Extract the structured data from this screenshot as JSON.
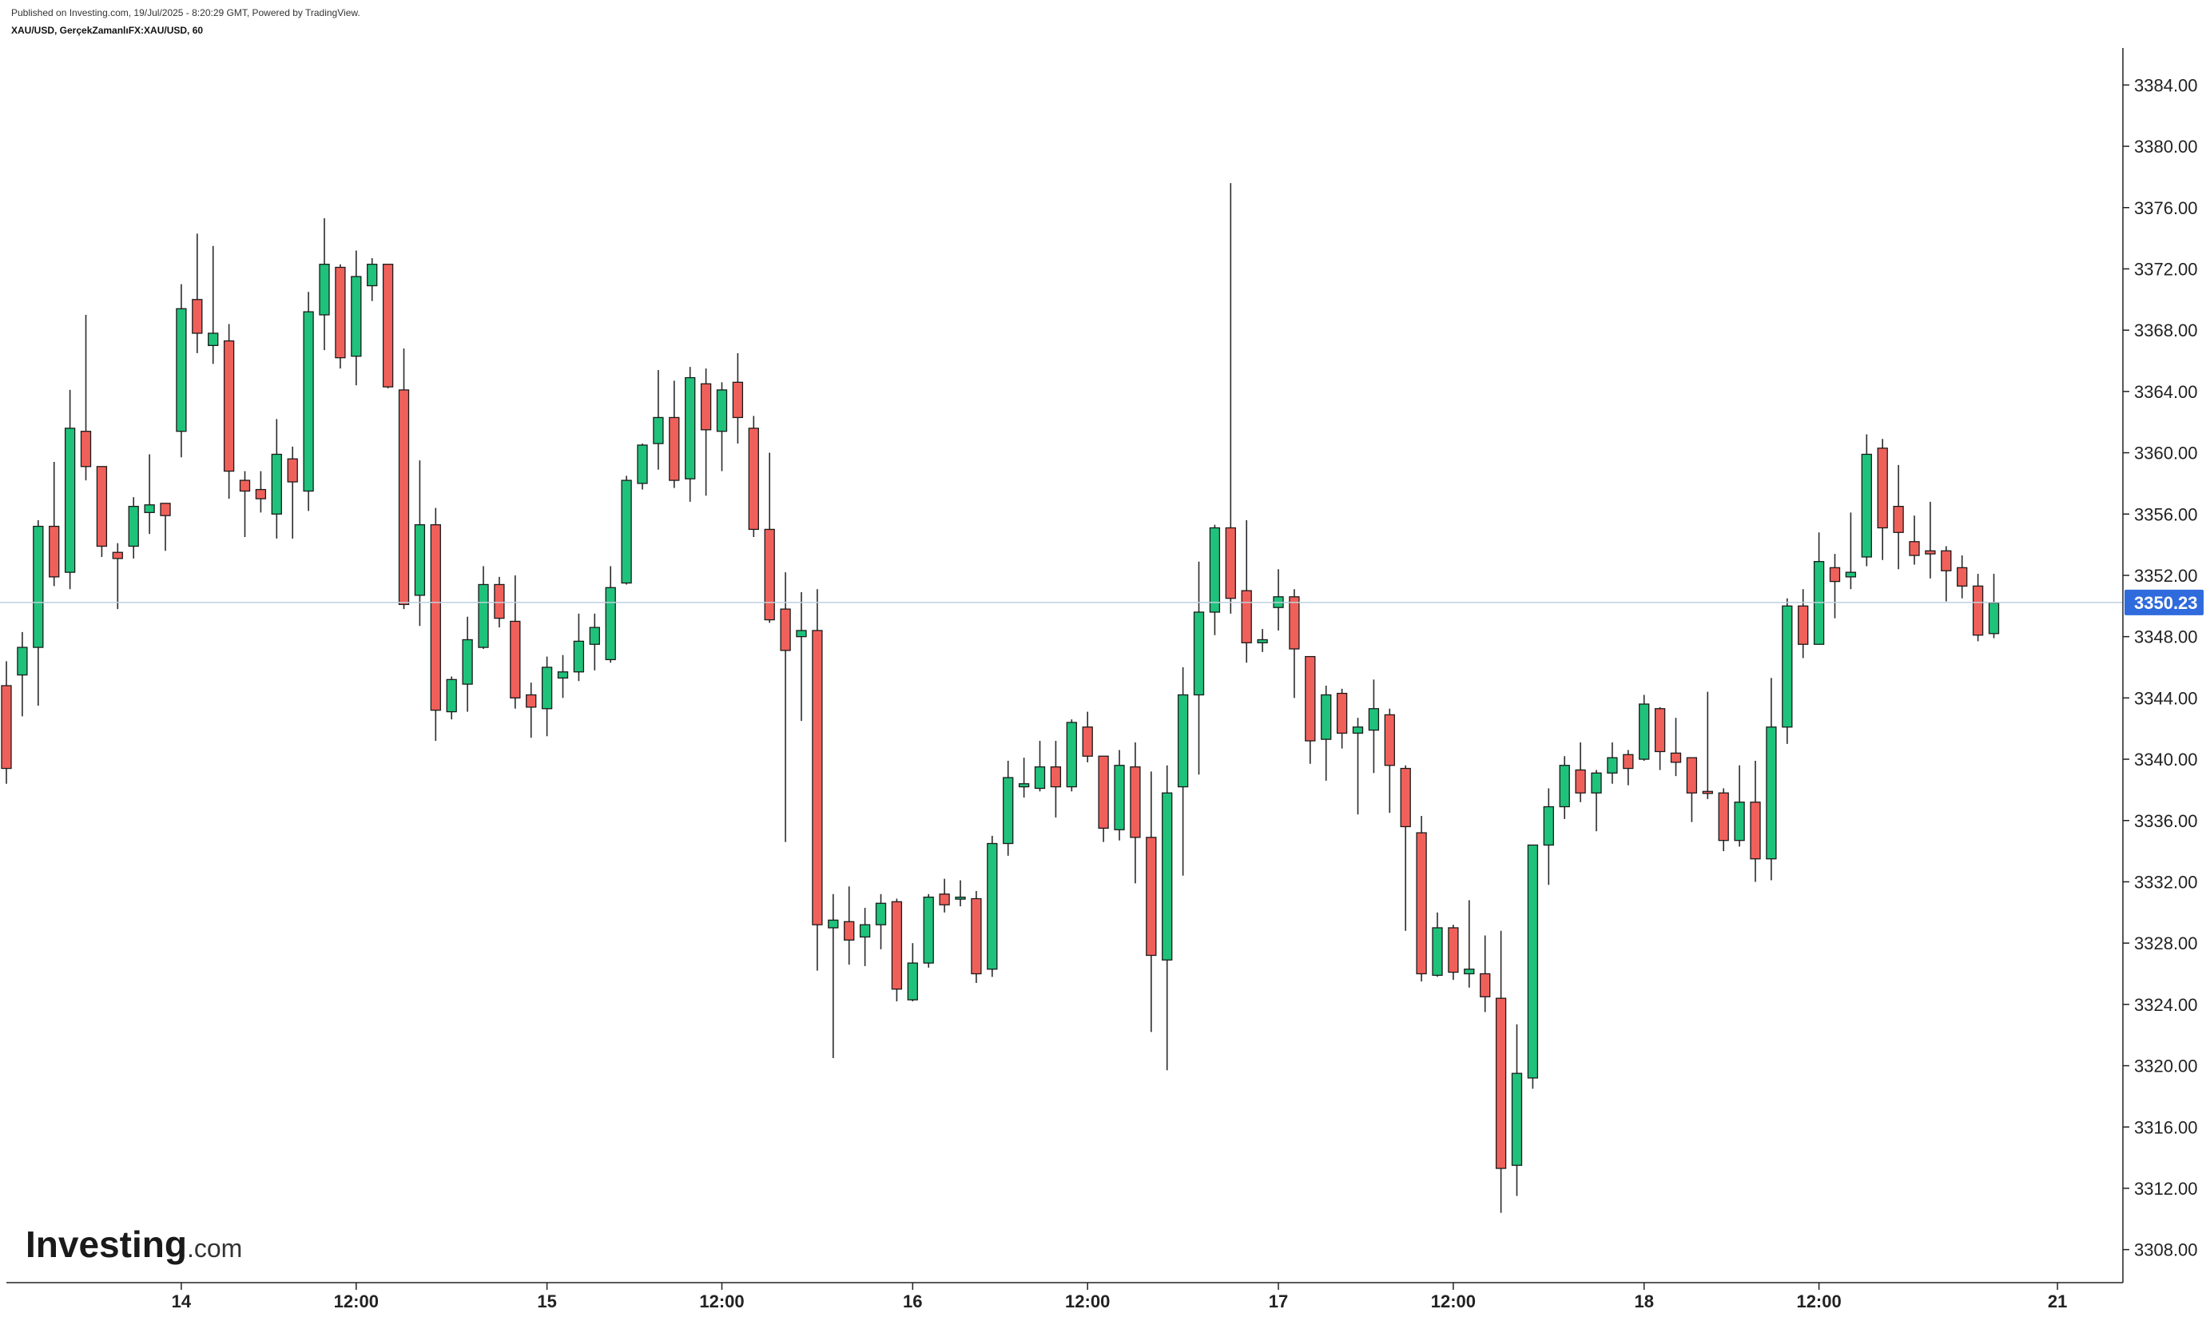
{
  "header": {
    "published": "Published on Investing.com, 19/Jul/2025 - 8:20:29 GMT, Powered by TradingView.",
    "symbol": "XAU/USD, GerçekZamanlıFX:XAU/USD, 60"
  },
  "logo": {
    "brand": "Investing",
    "suffix": ".com"
  },
  "colors": {
    "up": "#1fc27a",
    "down": "#f0605a",
    "wick": "#2a2a2a",
    "price_line": "#bcd0de",
    "price_badge": "#2f6bdc"
  },
  "chart_data": {
    "type": "candlestick",
    "title": "XAU/USD, GerçekZamanlıFX:XAU/USD, 60",
    "interval": "60",
    "ylim": [
      3306,
      3386
    ],
    "y_ticks": [
      "3308.00",
      "3312.00",
      "3316.00",
      "3320.00",
      "3324.00",
      "3328.00",
      "3332.00",
      "3336.00",
      "3340.00",
      "3344.00",
      "3348.00",
      "3352.00",
      "3356.00",
      "3360.00",
      "3364.00",
      "3368.00",
      "3372.00",
      "3376.00",
      "3380.00",
      "3384.00"
    ],
    "x_ticks": [
      {
        "label": "14",
        "bar": 11
      },
      {
        "label": "12:00",
        "bar": 22
      },
      {
        "label": "15",
        "bar": 34
      },
      {
        "label": "12:00",
        "bar": 45
      },
      {
        "label": "16",
        "bar": 57
      },
      {
        "label": "12:00",
        "bar": 68
      },
      {
        "label": "17",
        "bar": 80
      },
      {
        "label": "12:00",
        "bar": 91
      },
      {
        "label": "18",
        "bar": 103
      },
      {
        "label": "12:00",
        "bar": 114
      },
      {
        "label": "21",
        "bar": 129
      }
    ],
    "last_price": "3350.23",
    "last_value": 3350.23,
    "candles": [
      [
        3344.8,
        3346.4,
        3338.4,
        3339.4
      ],
      [
        3345.5,
        3348.3,
        3342.8,
        3347.3
      ],
      [
        3347.3,
        3355.6,
        3343.5,
        3355.2
      ],
      [
        3355.2,
        3359.4,
        3351.3,
        3351.9
      ],
      [
        3352.2,
        3364.1,
        3351.1,
        3361.6
      ],
      [
        3361.4,
        3369.0,
        3358.2,
        3359.1
      ],
      [
        3359.1,
        3359.1,
        3353.2,
        3353.9
      ],
      [
        3353.5,
        3354.1,
        3349.8,
        3353.1
      ],
      [
        3353.9,
        3357.1,
        3353.1,
        3356.5
      ],
      [
        3356.1,
        3359.9,
        3354.7,
        3356.6
      ],
      [
        3356.7,
        3356.7,
        3353.6,
        3355.9
      ],
      [
        3361.4,
        3371.0,
        3359.7,
        3369.4
      ],
      [
        3370.0,
        3374.3,
        3366.5,
        3367.8
      ],
      [
        3367.0,
        3373.5,
        3365.8,
        3367.8
      ],
      [
        3367.3,
        3368.4,
        3357.0,
        3358.8
      ],
      [
        3358.2,
        3358.8,
        3354.5,
        3357.5
      ],
      [
        3357.6,
        3358.8,
        3356.1,
        3357.0
      ],
      [
        3356.0,
        3362.2,
        3354.4,
        3359.9
      ],
      [
        3359.6,
        3360.4,
        3354.4,
        3358.1
      ],
      [
        3357.5,
        3370.5,
        3356.2,
        3369.2
      ],
      [
        3369.0,
        3375.3,
        3366.7,
        3372.3
      ],
      [
        3372.1,
        3372.3,
        3365.5,
        3366.2
      ],
      [
        3366.3,
        3373.2,
        3364.4,
        3371.5
      ],
      [
        3370.9,
        3372.7,
        3369.9,
        3372.3
      ],
      [
        3372.3,
        3372.3,
        3364.2,
        3364.3
      ],
      [
        3364.1,
        3366.8,
        3349.8,
        3350.1
      ],
      [
        3350.7,
        3359.5,
        3348.7,
        3355.3
      ],
      [
        3355.3,
        3356.4,
        3341.2,
        3343.2
      ],
      [
        3343.1,
        3345.4,
        3342.6,
        3345.2
      ],
      [
        3344.9,
        3349.3,
        3343.1,
        3347.8
      ],
      [
        3347.3,
        3352.6,
        3347.2,
        3351.4
      ],
      [
        3351.4,
        3351.9,
        3348.6,
        3349.2
      ],
      [
        3349.0,
        3352.0,
        3343.3,
        3344.0
      ],
      [
        3344.2,
        3345.0,
        3341.4,
        3343.4
      ],
      [
        3343.3,
        3346.7,
        3341.5,
        3346.0
      ],
      [
        3345.3,
        3346.8,
        3344.0,
        3345.7
      ],
      [
        3345.7,
        3349.5,
        3345.1,
        3347.7
      ],
      [
        3347.5,
        3349.5,
        3345.8,
        3348.6
      ],
      [
        3346.5,
        3352.6,
        3346.3,
        3351.2
      ],
      [
        3351.5,
        3358.5,
        3351.4,
        3358.2
      ],
      [
        3358.0,
        3360.6,
        3357.6,
        3360.5
      ],
      [
        3360.6,
        3365.4,
        3358.9,
        3362.3
      ],
      [
        3362.3,
        3364.7,
        3357.7,
        3358.2
      ],
      [
        3358.3,
        3365.6,
        3356.8,
        3364.9
      ],
      [
        3364.5,
        3365.5,
        3357.2,
        3361.5
      ],
      [
        3361.4,
        3364.6,
        3358.8,
        3364.1
      ],
      [
        3364.6,
        3366.5,
        3360.6,
        3362.3
      ],
      [
        3361.6,
        3362.4,
        3354.5,
        3355.0
      ],
      [
        3355.0,
        3360.0,
        3348.9,
        3349.1
      ],
      [
        3349.8,
        3352.2,
        3334.6,
        3347.1
      ],
      [
        3348.0,
        3350.9,
        3342.5,
        3348.4
      ],
      [
        3348.4,
        3351.1,
        3326.2,
        3329.2
      ],
      [
        3329.0,
        3331.2,
        3320.5,
        3329.5
      ],
      [
        3329.4,
        3331.7,
        3326.6,
        3328.2
      ],
      [
        3328.4,
        3330.3,
        3326.5,
        3329.2
      ],
      [
        3329.2,
        3331.2,
        3327.6,
        3330.6
      ],
      [
        3330.7,
        3330.9,
        3324.2,
        3325.0
      ],
      [
        3324.3,
        3328.0,
        3324.2,
        3326.7
      ],
      [
        3326.7,
        3331.2,
        3326.4,
        3331.0
      ],
      [
        3331.2,
        3332.2,
        3330.0,
        3330.5
      ],
      [
        3330.9,
        3332.1,
        3330.4,
        3331.0
      ],
      [
        3330.9,
        3331.4,
        3325.4,
        3326.0
      ],
      [
        3326.3,
        3335.0,
        3325.8,
        3334.5
      ],
      [
        3334.5,
        3339.9,
        3333.7,
        3338.8
      ],
      [
        3338.2,
        3340.1,
        3337.5,
        3338.4
      ],
      [
        3338.1,
        3341.2,
        3337.9,
        3339.5
      ],
      [
        3339.5,
        3341.2,
        3336.2,
        3338.2
      ],
      [
        3338.2,
        3342.6,
        3337.9,
        3342.4
      ],
      [
        3342.1,
        3343.1,
        3339.8,
        3340.2
      ],
      [
        3340.2,
        3340.2,
        3334.6,
        3335.5
      ],
      [
        3335.4,
        3340.6,
        3334.7,
        3339.6
      ],
      [
        3339.5,
        3341.1,
        3331.9,
        3334.9
      ],
      [
        3334.9,
        3339.2,
        3322.2,
        3327.2
      ],
      [
        3326.9,
        3339.6,
        3319.7,
        3337.8
      ],
      [
        3338.2,
        3346.0,
        3332.4,
        3344.2
      ],
      [
        3344.2,
        3352.9,
        3339.0,
        3349.6
      ],
      [
        3349.6,
        3355.3,
        3348.1,
        3355.1
      ],
      [
        3355.1,
        3377.6,
        3349.5,
        3350.5
      ],
      [
        3351.0,
        3355.6,
        3346.3,
        3347.6
      ],
      [
        3347.6,
        3348.5,
        3347.0,
        3347.8
      ],
      [
        3349.9,
        3352.4,
        3348.4,
        3350.6
      ],
      [
        3350.6,
        3351.1,
        3344.0,
        3347.2
      ],
      [
        3346.7,
        3346.7,
        3339.7,
        3341.2
      ],
      [
        3341.3,
        3344.8,
        3338.6,
        3344.2
      ],
      [
        3344.3,
        3344.6,
        3340.7,
        3341.7
      ],
      [
        3341.7,
        3342.7,
        3336.4,
        3342.1
      ],
      [
        3341.9,
        3345.2,
        3339.1,
        3343.3
      ],
      [
        3342.9,
        3343.3,
        3336.5,
        3339.6
      ],
      [
        3339.4,
        3339.6,
        3328.8,
        3335.6
      ],
      [
        3335.2,
        3336.3,
        3325.5,
        3326.0
      ],
      [
        3325.9,
        3330.0,
        3325.8,
        3329.0
      ],
      [
        3329.0,
        3329.2,
        3325.6,
        3326.1
      ],
      [
        3326.0,
        3330.8,
        3325.1,
        3326.3
      ],
      [
        3326.0,
        3328.5,
        3323.5,
        3324.5
      ],
      [
        3324.4,
        3328.8,
        3310.4,
        3313.3
      ],
      [
        3313.5,
        3322.7,
        3311.5,
        3319.5
      ],
      [
        3319.2,
        3334.4,
        3318.5,
        3334.4
      ],
      [
        3334.4,
        3338.1,
        3331.8,
        3336.9
      ],
      [
        3336.9,
        3340.2,
        3336.1,
        3339.6
      ],
      [
        3339.3,
        3341.1,
        3337.2,
        3337.8
      ],
      [
        3337.8,
        3339.3,
        3335.3,
        3339.1
      ],
      [
        3339.1,
        3341.1,
        3338.4,
        3340.1
      ],
      [
        3340.3,
        3340.6,
        3338.3,
        3339.4
      ],
      [
        3340.0,
        3344.2,
        3339.9,
        3343.6
      ],
      [
        3343.3,
        3343.4,
        3339.3,
        3340.5
      ],
      [
        3340.4,
        3342.7,
        3338.9,
        3339.8
      ],
      [
        3340.1,
        3340.1,
        3335.9,
        3337.8
      ],
      [
        3337.9,
        3344.4,
        3337.4,
        3337.8
      ],
      [
        3337.8,
        3338.1,
        3334.0,
        3334.7
      ],
      [
        3334.7,
        3339.6,
        3334.3,
        3337.2
      ],
      [
        3337.2,
        3339.9,
        3332.0,
        3333.5
      ],
      [
        3333.5,
        3345.3,
        3332.1,
        3342.1
      ],
      [
        3342.1,
        3350.5,
        3341.0,
        3350.0
      ],
      [
        3350.0,
        3351.1,
        3346.6,
        3347.5
      ],
      [
        3347.5,
        3354.8,
        3347.5,
        3352.9
      ],
      [
        3352.5,
        3353.4,
        3349.2,
        3351.6
      ],
      [
        3351.9,
        3356.1,
        3351.1,
        3352.2
      ],
      [
        3353.2,
        3361.2,
        3352.6,
        3359.9
      ],
      [
        3360.3,
        3360.9,
        3353.0,
        3355.1
      ],
      [
        3356.5,
        3359.2,
        3352.4,
        3354.8
      ],
      [
        3354.2,
        3355.9,
        3352.7,
        3353.3
      ],
      [
        3353.6,
        3356.8,
        3351.8,
        3353.4
      ],
      [
        3353.6,
        3353.9,
        3350.3,
        3352.3
      ],
      [
        3352.5,
        3353.3,
        3350.5,
        3351.3
      ],
      [
        3351.3,
        3352.1,
        3347.7,
        3348.1
      ],
      [
        3348.2,
        3352.1,
        3347.9,
        3350.2
      ]
    ]
  }
}
